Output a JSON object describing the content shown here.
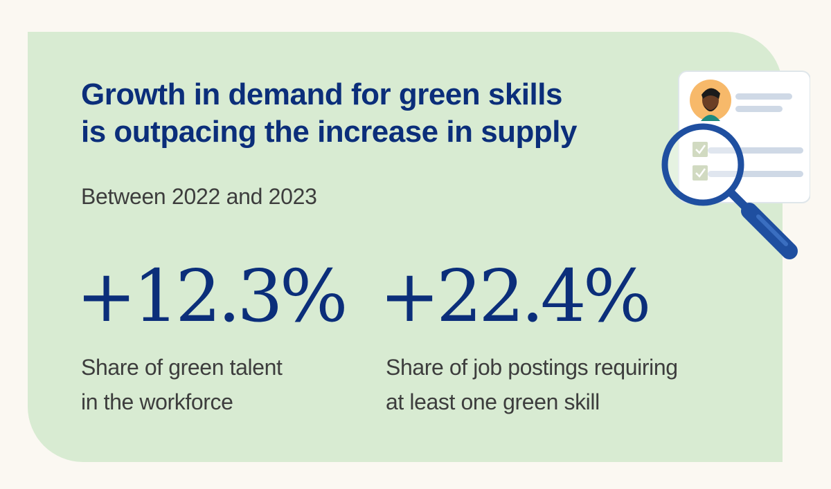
{
  "title": {
    "line1": "Growth in demand for green skills",
    "line2": "is outpacing the increase in supply"
  },
  "subtitle": "Between 2022 and 2023",
  "stats": [
    {
      "value": "+12.3%",
      "label_line1": "Share of green talent",
      "label_line2": "in the workforce"
    },
    {
      "value": "+22.4%",
      "label_line1": "Share of job postings requiring",
      "label_line2": "at least one green skill"
    }
  ],
  "colors": {
    "page_background": "#fbf8f2",
    "card_background": "#d8ebd2",
    "title": "#0b2e7a",
    "body_text": "#3d3d3d",
    "magnifier": "#1f4fa0",
    "check_box": "#b9c7a0"
  },
  "illustration": {
    "icons": [
      "profile-card-icon",
      "avatar-icon",
      "checkbox-icon",
      "magnifying-glass-icon"
    ]
  }
}
